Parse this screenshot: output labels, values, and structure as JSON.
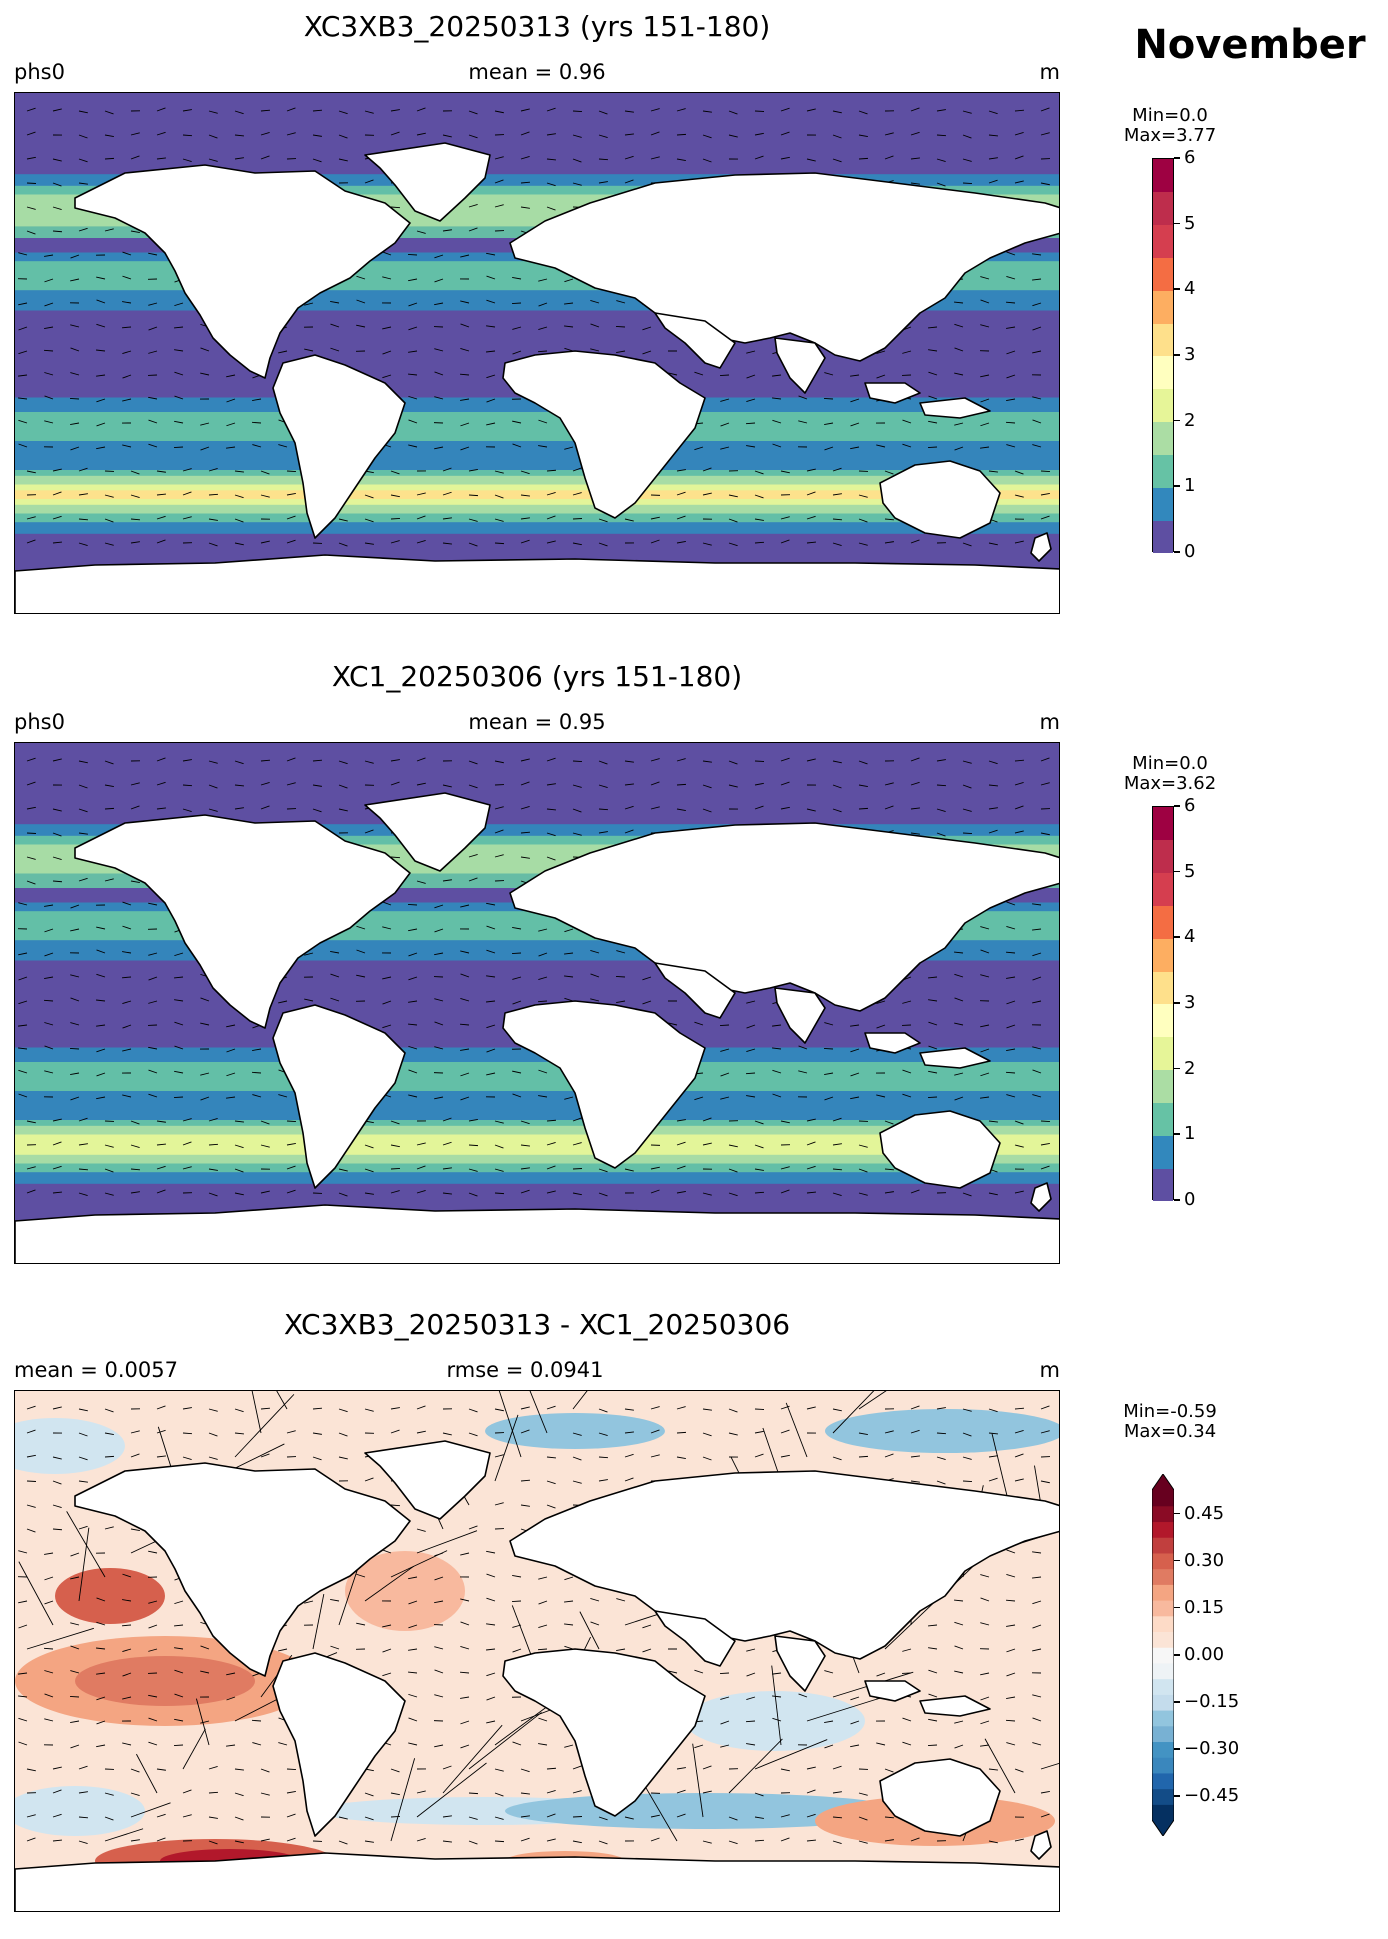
{
  "month": "November",
  "panels": [
    {
      "title": "XC3XB3_20250313 (yrs 151-180)",
      "left_label": "phs0",
      "center_label": "mean = 0.96",
      "right_label": "m",
      "stats": "Min=0.0\nMax=3.77",
      "colorbar": {
        "ticks": [
          "0",
          "1",
          "2",
          "3",
          "4",
          "5",
          "6"
        ],
        "levels": [
          0,
          0.5,
          1,
          1.5,
          2,
          2.5,
          3,
          3.5,
          4,
          4.5,
          5,
          5.5,
          6
        ],
        "colors": [
          "#5e4fa2",
          "#3288bd",
          "#66c2a5",
          "#abdda4",
          "#e6f598",
          "#ffffbf",
          "#fee08b",
          "#fdae61",
          "#f46d43",
          "#d53e4f",
          "#be2d4c",
          "#9e0142"
        ]
      }
    },
    {
      "title": "XC1_20250306 (yrs 151-180)",
      "left_label": "phs0",
      "center_label": "mean = 0.95",
      "right_label": "m",
      "stats": "Min=0.0\nMax=3.62",
      "colorbar": {
        "ticks": [
          "0",
          "1",
          "2",
          "3",
          "4",
          "5",
          "6"
        ],
        "levels": [
          0,
          0.5,
          1,
          1.5,
          2,
          2.5,
          3,
          3.5,
          4,
          4.5,
          5,
          5.5,
          6
        ],
        "colors": [
          "#5e4fa2",
          "#3288bd",
          "#66c2a5",
          "#abdda4",
          "#e6f598",
          "#ffffbf",
          "#fee08b",
          "#fdae61",
          "#f46d43",
          "#d53e4f",
          "#be2d4c",
          "#9e0142"
        ]
      }
    },
    {
      "title": "XC3XB3_20250313 - XC1_20250306",
      "left_label": "mean = 0.0057",
      "center_label": "rmse = 0.0941",
      "right_label": "m",
      "stats": "Min=-0.59\nMax=0.34",
      "colorbar": {
        "ticks": [
          "−0.45",
          "−0.30",
          "−0.15",
          "0.00",
          "0.15",
          "0.30",
          "0.45"
        ],
        "colors": [
          "#053061",
          "#134c87",
          "#2166ac",
          "#3a87bd",
          "#4393c3",
          "#78b1d3",
          "#92c5de",
          "#c4dcec",
          "#d1e5f0",
          "#eef3f6",
          "#f7f7f7",
          "#fbe4d6",
          "#fddbc7",
          "#f8b99e",
          "#f4a582",
          "#e07b62",
          "#d6604d",
          "#c13f3e",
          "#b2182b",
          "#8a0b25",
          "#67001f"
        ]
      }
    }
  ]
}
